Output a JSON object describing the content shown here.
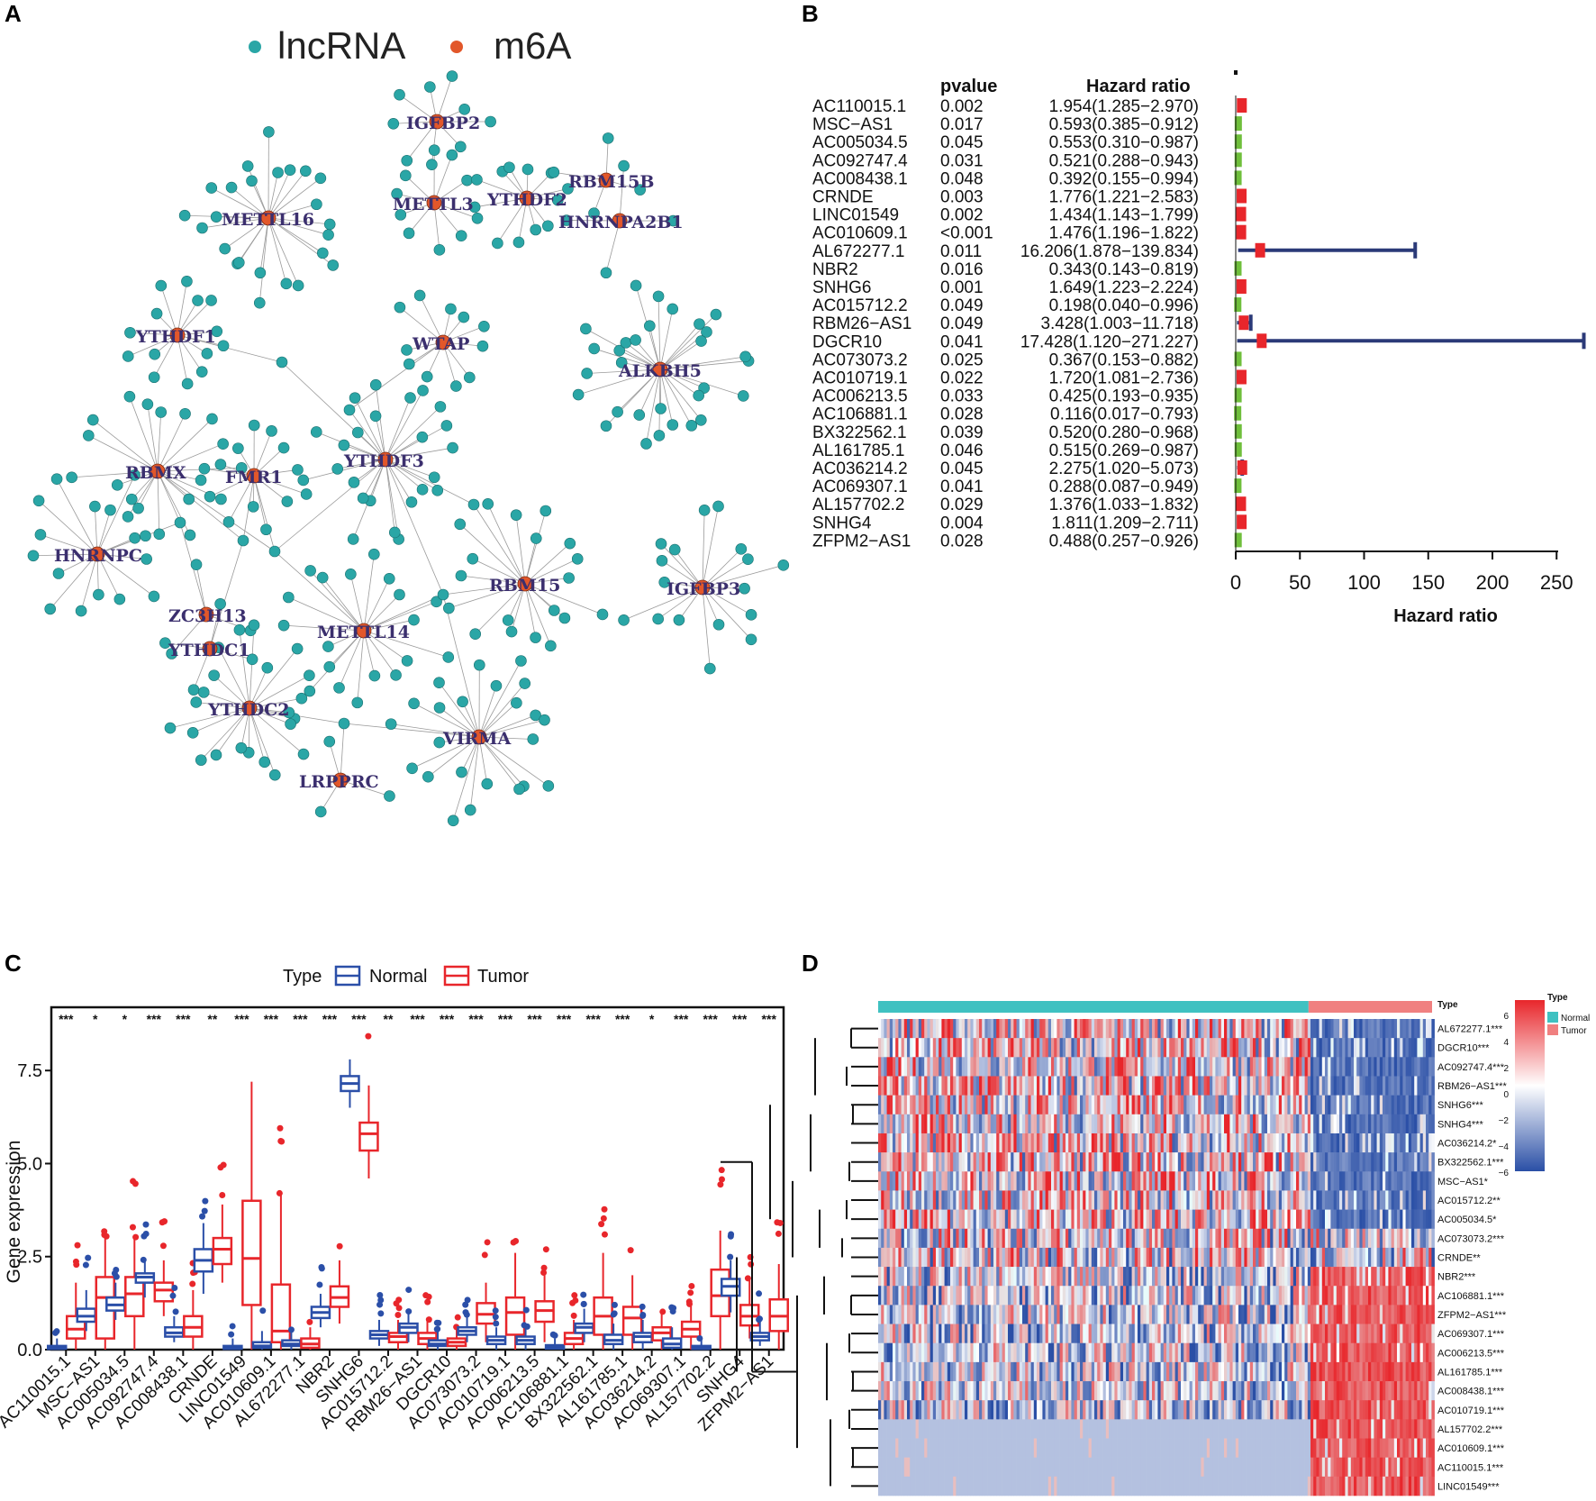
{
  "panels": {
    "A": "A",
    "B": "B",
    "C": "C",
    "D": "D"
  },
  "network": {
    "legend": [
      {
        "label": "lncRNA",
        "color": "#2aa6a6"
      },
      {
        "label": "m6A",
        "color": "#e2572a"
      }
    ],
    "hubs": [
      "IGFBP2",
      "METTL16",
      "METTL3",
      "YTHDF2",
      "RBM15B",
      "HNRNPA2B1",
      "YTHDF1",
      "WTAP",
      "ALKBH5",
      "RBMX",
      "FMR1",
      "YTHDF3",
      "HNRNPC",
      "RBM15",
      "IGFBP3",
      "ZC3H13",
      "METTL14",
      "YTHDC1",
      "YTHDC2",
      "VIRMA",
      "LRPPRC"
    ]
  },
  "forest": {
    "col_pvalue": "pvalue",
    "col_hr": "Hazard ratio",
    "xlabel": "Hazard ratio",
    "xticks": [
      "0",
      "50",
      "100",
      "150",
      "200",
      "250"
    ],
    "rows": [
      {
        "gene": "AC110015.1",
        "p": "0.002",
        "hr_text": "1.954(1.285−2.970)",
        "hr": 1.954,
        "lo": 1.285,
        "hi": 2.97
      },
      {
        "gene": "MSC−AS1",
        "p": "0.017",
        "hr_text": "0.593(0.385−0.912)",
        "hr": 0.593,
        "lo": 0.385,
        "hi": 0.912
      },
      {
        "gene": "AC005034.5",
        "p": "0.045",
        "hr_text": "0.553(0.310−0.987)",
        "hr": 0.553,
        "lo": 0.31,
        "hi": 0.987
      },
      {
        "gene": "AC092747.4",
        "p": "0.031",
        "hr_text": "0.521(0.288−0.943)",
        "hr": 0.521,
        "lo": 0.288,
        "hi": 0.943
      },
      {
        "gene": "AC008438.1",
        "p": "0.048",
        "hr_text": "0.392(0.155−0.994)",
        "hr": 0.392,
        "lo": 0.155,
        "hi": 0.994
      },
      {
        "gene": "CRNDE",
        "p": "0.003",
        "hr_text": "1.776(1.221−2.583)",
        "hr": 1.776,
        "lo": 1.221,
        "hi": 2.583
      },
      {
        "gene": "LINC01549",
        "p": "0.002",
        "hr_text": "1.434(1.143−1.799)",
        "hr": 1.434,
        "lo": 1.143,
        "hi": 1.799
      },
      {
        "gene": "AC010609.1",
        "p": "<0.001",
        "hr_text": "1.476(1.196−1.822)",
        "hr": 1.476,
        "lo": 1.196,
        "hi": 1.822
      },
      {
        "gene": "AL672277.1",
        "p": "0.011",
        "hr_text": "16.206(1.878−139.834)",
        "hr": 16.206,
        "lo": 1.878,
        "hi": 139.834
      },
      {
        "gene": "NBR2",
        "p": "0.016",
        "hr_text": "0.343(0.143−0.819)",
        "hr": 0.343,
        "lo": 0.143,
        "hi": 0.819
      },
      {
        "gene": "SNHG6",
        "p": "0.001",
        "hr_text": "1.649(1.223−2.224)",
        "hr": 1.649,
        "lo": 1.223,
        "hi": 2.224
      },
      {
        "gene": "AC015712.2",
        "p": "0.049",
        "hr_text": "0.198(0.040−0.996)",
        "hr": 0.198,
        "lo": 0.04,
        "hi": 0.996
      },
      {
        "gene": "RBM26−AS1",
        "p": "0.049",
        "hr_text": "3.428(1.003−11.718)",
        "hr": 3.428,
        "lo": 1.003,
        "hi": 11.718
      },
      {
        "gene": "DGCR10",
        "p": "0.041",
        "hr_text": "17.428(1.120−271.227)",
        "hr": 17.428,
        "lo": 1.12,
        "hi": 271.227
      },
      {
        "gene": "AC073073.2",
        "p": "0.025",
        "hr_text": "0.367(0.153−0.882)",
        "hr": 0.367,
        "lo": 0.153,
        "hi": 0.882
      },
      {
        "gene": "AC010719.1",
        "p": "0.022",
        "hr_text": "1.720(1.081−2.736)",
        "hr": 1.72,
        "lo": 1.081,
        "hi": 2.736
      },
      {
        "gene": "AC006213.5",
        "p": "0.033",
        "hr_text": "0.425(0.193−0.935)",
        "hr": 0.425,
        "lo": 0.193,
        "hi": 0.935
      },
      {
        "gene": "AC106881.1",
        "p": "0.028",
        "hr_text": "0.116(0.017−0.793)",
        "hr": 0.116,
        "lo": 0.017,
        "hi": 0.793
      },
      {
        "gene": "BX322562.1",
        "p": "0.039",
        "hr_text": "0.520(0.280−0.968)",
        "hr": 0.52,
        "lo": 0.28,
        "hi": 0.968
      },
      {
        "gene": "AL161785.1",
        "p": "0.046",
        "hr_text": "0.515(0.269−0.987)",
        "hr": 0.515,
        "lo": 0.269,
        "hi": 0.987
      },
      {
        "gene": "AC036214.2",
        "p": "0.045",
        "hr_text": "2.275(1.020−5.073)",
        "hr": 2.275,
        "lo": 1.02,
        "hi": 5.073
      },
      {
        "gene": "AC069307.1",
        "p": "0.041",
        "hr_text": "0.288(0.087−0.949)",
        "hr": 0.288,
        "lo": 0.087,
        "hi": 0.949
      },
      {
        "gene": "AL157702.2",
        "p": "0.029",
        "hr_text": "1.376(1.033−1.832)",
        "hr": 1.376,
        "lo": 1.033,
        "hi": 1.832
      },
      {
        "gene": "SNHG4",
        "p": "0.004",
        "hr_text": "1.811(1.209−2.711)",
        "hr": 1.811,
        "lo": 1.209,
        "hi": 2.711
      },
      {
        "gene": "ZFPM2−AS1",
        "p": "0.028",
        "hr_text": "0.488(0.257−0.926)",
        "hr": 0.488,
        "lo": 0.257,
        "hi": 0.926
      }
    ]
  },
  "chart_data": [
    {
      "type": "box",
      "title": "",
      "legend_title": "Type",
      "legend": [
        {
          "label": "Normal",
          "color": "#2b4fa8"
        },
        {
          "label": "Tumor",
          "color": "#e8262b"
        }
      ],
      "ylabel": "Gene expression",
      "ylim": [
        0,
        9.2
      ],
      "yticks": [
        "0.0",
        "2.5",
        "5.0",
        "7.5"
      ],
      "categories": [
        "AC110015.1",
        "MSC−AS1",
        "AC005034.5",
        "AC092747.4",
        "AC008438.1",
        "CRNDE",
        "LINC01549",
        "AC010609.1",
        "AL672277.1",
        "NBR2",
        "SNHG6",
        "AC015712.2",
        "RBM26−AS1",
        "DGCR10",
        "AC073073.2",
        "AC010719.1",
        "AC006213.5",
        "AC106881.1",
        "BX322562.1",
        "AL161785.1",
        "AC036214.2",
        "AC069307.1",
        "AL157702.2",
        "SNHG4",
        "ZFPM2−AS1"
      ],
      "significance": [
        "***",
        "*",
        "*",
        "***",
        "***",
        "**",
        "***",
        "***",
        "***",
        "***",
        "***",
        "**",
        "***",
        "***",
        "***",
        "***",
        "***",
        "***",
        "***",
        "***",
        "*",
        "***",
        "***",
        "***",
        "***"
      ],
      "normal": [
        [
          0.0,
          0.02,
          0.05,
          0.1,
          0.3
        ],
        [
          0.5,
          0.75,
          0.9,
          1.1,
          1.6
        ],
        [
          0.8,
          1.05,
          1.2,
          1.4,
          1.8
        ],
        [
          1.4,
          1.8,
          1.95,
          2.05,
          2.4
        ],
        [
          0.2,
          0.35,
          0.45,
          0.6,
          0.9
        ],
        [
          1.5,
          2.1,
          2.4,
          2.7,
          3.4
        ],
        [
          0.0,
          0.02,
          0.05,
          0.1,
          0.3
        ],
        [
          0.0,
          0.05,
          0.1,
          0.2,
          0.5
        ],
        [
          0.0,
          0.1,
          0.15,
          0.25,
          0.5
        ],
        [
          0.6,
          0.85,
          1.0,
          1.15,
          1.5
        ],
        [
          6.5,
          6.95,
          7.15,
          7.35,
          7.8
        ],
        [
          0.1,
          0.3,
          0.4,
          0.5,
          0.8
        ],
        [
          0.2,
          0.45,
          0.6,
          0.7,
          1.0
        ],
        [
          0.0,
          0.1,
          0.15,
          0.25,
          0.5
        ],
        [
          0.2,
          0.4,
          0.5,
          0.6,
          0.9
        ],
        [
          0.0,
          0.15,
          0.25,
          0.35,
          0.6
        ],
        [
          0.0,
          0.15,
          0.25,
          0.35,
          0.6
        ],
        [
          0.0,
          0.03,
          0.08,
          0.12,
          0.3
        ],
        [
          0.2,
          0.45,
          0.6,
          0.7,
          1.1
        ],
        [
          0.0,
          0.15,
          0.25,
          0.4,
          0.7
        ],
        [
          0.0,
          0.2,
          0.35,
          0.45,
          0.8
        ],
        [
          0.0,
          0.05,
          0.15,
          0.3,
          0.6
        ],
        [
          0.0,
          0.02,
          0.05,
          0.1,
          0.3
        ],
        [
          1.0,
          1.45,
          1.7,
          1.9,
          2.4
        ],
        [
          0.1,
          0.25,
          0.35,
          0.45,
          0.8
        ]
      ],
      "tumor": [
        [
          0.0,
          0.3,
          0.55,
          0.9,
          1.8
        ],
        [
          0.0,
          0.3,
          1.4,
          1.95,
          3.0
        ],
        [
          0.0,
          0.9,
          1.5,
          1.95,
          3.0
        ],
        [
          0.9,
          1.3,
          1.6,
          1.8,
          2.4
        ],
        [
          0.0,
          0.35,
          0.6,
          0.9,
          1.6
        ],
        [
          1.8,
          2.3,
          2.7,
          3.0,
          3.9
        ],
        [
          0.0,
          1.2,
          2.45,
          4.0,
          7.2
        ],
        [
          0.0,
          0.2,
          0.5,
          1.75,
          4.2
        ],
        [
          0.0,
          0.05,
          0.15,
          0.3,
          0.6
        ],
        [
          0.7,
          1.15,
          1.4,
          1.7,
          2.4
        ],
        [
          4.6,
          5.35,
          5.8,
          6.1,
          7.1
        ],
        [
          0.0,
          0.2,
          0.35,
          0.45,
          0.8
        ],
        [
          0.0,
          0.15,
          0.3,
          0.45,
          0.8
        ],
        [
          0.0,
          0.1,
          0.2,
          0.3,
          0.6
        ],
        [
          0.2,
          0.7,
          0.95,
          1.25,
          1.8
        ],
        [
          0.0,
          0.4,
          1.0,
          1.4,
          2.6
        ],
        [
          0.2,
          0.75,
          1.05,
          1.3,
          2.0
        ],
        [
          0.0,
          0.15,
          0.3,
          0.45,
          0.8
        ],
        [
          0.0,
          0.4,
          0.9,
          1.4,
          2.6
        ],
        [
          0.0,
          0.4,
          0.85,
          1.15,
          2.0
        ],
        [
          0.0,
          0.25,
          0.45,
          0.6,
          1.0
        ],
        [
          0.0,
          0.35,
          0.55,
          0.75,
          1.2
        ],
        [
          0.0,
          0.9,
          1.45,
          2.15,
          3.2
        ],
        [
          0.3,
          0.65,
          0.9,
          1.2,
          1.9
        ],
        [
          0.0,
          0.5,
          0.9,
          1.35,
          2.3
        ]
      ]
    },
    {
      "type": "heatmap",
      "annotation_title": "Type",
      "legend_title": "Type",
      "legend": [
        {
          "label": "Normal",
          "color": "#3fc1c1"
        },
        {
          "label": "Tumor",
          "color": "#f08080"
        }
      ],
      "color_scale_ticks": [
        "6",
        "4",
        "2",
        "0",
        "−2",
        "−4",
        "−6"
      ],
      "color_scale_range": [
        -6.5,
        6.5
      ],
      "rows": [
        "AL672277.1***",
        "DGCR10***",
        "AC092747.4***",
        "RBM26−AS1***",
        "SNHG6***",
        "SNHG4***",
        "AC036214.2*",
        "BX322562.1***",
        "MSC−AS1*",
        "AC015712.2**",
        "AC005034.5*",
        "AC073073.2***",
        "CRNDE**",
        "NBR2***",
        "AC106881.1***",
        "ZFPM2−AS1***",
        "AC069307.1***",
        "AC006213.5***",
        "AL161785.1***",
        "AC008438.1***",
        "AC010719.1***",
        "AL157702.2***",
        "AC010609.1***",
        "AC110015.1***",
        "LINC01549***"
      ],
      "row_direction": [
        "down",
        "down",
        "down",
        "down",
        "down",
        "down",
        "down",
        "down",
        "down",
        "down",
        "down",
        "mixed",
        "mixed",
        "up",
        "up",
        "up",
        "up",
        "up",
        "up",
        "up",
        "up",
        "up",
        "up",
        "up",
        "up"
      ],
      "normal_fraction": 0.777
    }
  ]
}
